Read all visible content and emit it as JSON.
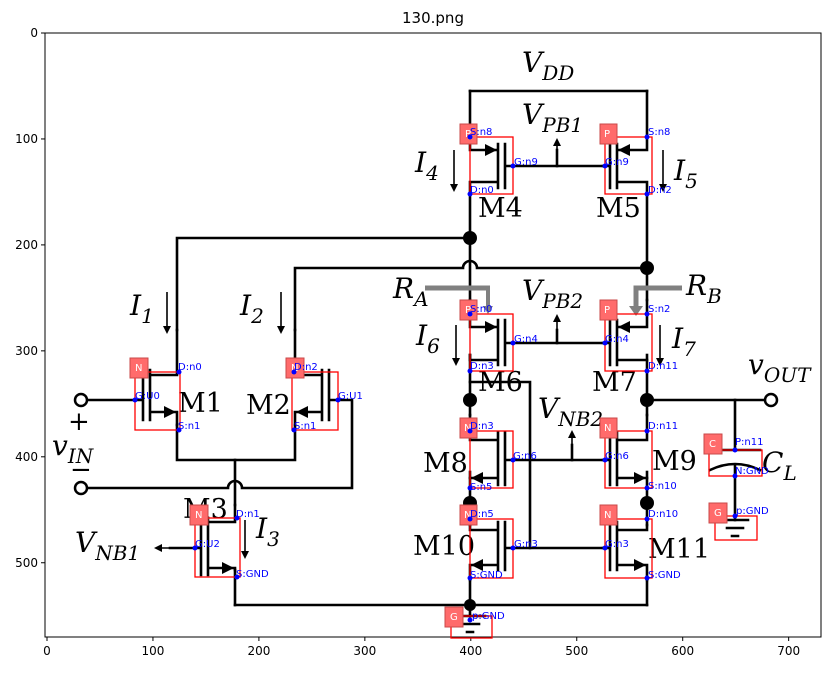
{
  "title": "130.png",
  "x_ticks": [
    "0",
    "100",
    "200",
    "300",
    "400",
    "500",
    "600",
    "700"
  ],
  "y_ticks": [
    "0",
    "100",
    "200",
    "300",
    "400",
    "500"
  ],
  "labels": {
    "vdd": "V",
    "vdd_sub": "DD",
    "vpb1": "V",
    "vpb1_sub": "PB1",
    "vpb2": "V",
    "vpb2_sub": "PB2",
    "vnb2": "V",
    "vnb2_sub": "NB2",
    "vnb1": "V",
    "vnb1_sub": "NB1",
    "vin": "v",
    "vin_sub": "IN",
    "vout": "v",
    "vout_sub": "OUT",
    "ra": "R",
    "ra_sub": "A",
    "rb": "R",
    "rb_sub": "B",
    "cl": "C",
    "cl_sub": "L",
    "i1": "I",
    "i1_sub": "1",
    "i2": "I",
    "i2_sub": "2",
    "i3": "I",
    "i3_sub": "3",
    "i4": "I",
    "i4_sub": "4",
    "i5": "I",
    "i5_sub": "5",
    "i6": "I",
    "i6_sub": "6",
    "i7": "I",
    "i7_sub": "7",
    "plus": "+",
    "minus": "−"
  },
  "devices": {
    "m1": "M1",
    "m2": "M2",
    "m3": "M3",
    "m4": "M4",
    "m5": "M5",
    "m6": "M6",
    "m7": "M7",
    "m8": "M8",
    "m9": "M9",
    "m10": "M10",
    "m11": "M11"
  },
  "types": {
    "m1": "N",
    "m2": "N",
    "m3": "N",
    "m4": "P",
    "m5": "P",
    "m6": "P",
    "m7": "P",
    "m8": "N",
    "m9": "N",
    "m10": "N",
    "m11": "N",
    "cl": "C",
    "gnd1": "G",
    "gnd2": "G"
  },
  "pins": {
    "m1_d": "D:n0",
    "m1_g": "G:U0",
    "m1_s": "S:n1",
    "m2_d": "D:n2",
    "m2_g": "G:U1",
    "m2_s": "S:n1",
    "m3_d": "D:n1",
    "m3_g": "G:U2",
    "m3_s": "S:GND",
    "m4_s": "S:n8",
    "m4_g": "G:n9",
    "m4_d": "D:n0",
    "m5_s": "S:n8",
    "m5_g": "G:n9",
    "m5_d": "D:n2",
    "m6_s": "S:n0",
    "m6_g": "G:n4",
    "m6_d": "D:n3",
    "m7_s": "S:n2",
    "m7_g": "G:n4",
    "m7_d": "D:n11",
    "m8_d": "D:n3",
    "m8_g": "G:n6",
    "m8_s": "S:n5",
    "m9_d": "D:n11",
    "m9_g": "G:n6",
    "m9_s": "S:n10",
    "m10_d": "D:n5",
    "m10_g": "G:n3",
    "m10_s": "S:GND",
    "m11_d": "D:n10",
    "m11_g": "G:n3",
    "m11_s": "S:GND",
    "cl_p": "P:n11",
    "cl_n": "N:GND",
    "gnd1": "p:GND",
    "gnd2": "p:GND"
  }
}
